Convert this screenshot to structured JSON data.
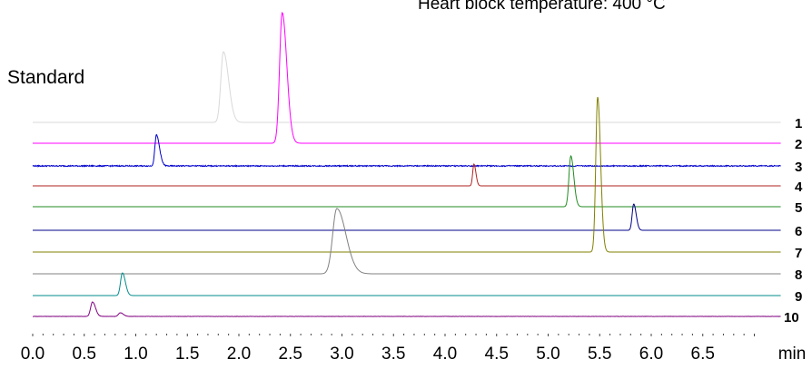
{
  "header": {
    "title": "Heart block temperature: 400 °C",
    "standard_label": "Standard"
  },
  "chart_data": {
    "type": "line",
    "title": "Heart block temperature: 400 °C",
    "xlabel": "min",
    "ylabel": "",
    "xlim": [
      0.0,
      7.0
    ],
    "xticks": [
      "0.0",
      "0.5",
      "1.0",
      "1.5",
      "2.0",
      "2.5",
      "3.0",
      "3.5",
      "4.0",
      "4.5",
      "5.0",
      "5.5",
      "6.0",
      "6.5"
    ],
    "x_unit_label": "min",
    "stacked_offset_traces": true,
    "grid": false,
    "legend": "right-side numeric labels",
    "series": [
      {
        "name": "1",
        "color": "#d9d9d9",
        "peaks": [
          {
            "rt": 1.85,
            "height": 1.0
          }
        ],
        "noise": 0.0
      },
      {
        "name": "2",
        "color": "#ff00ff",
        "peaks": [
          {
            "rt": 2.42,
            "height": 1.0
          }
        ],
        "noise": 0.0
      },
      {
        "name": "3",
        "color": "#0000cc",
        "peaks": [
          {
            "rt": 1.2,
            "height": 1.0
          }
        ],
        "noise": 0.6
      },
      {
        "name": "4",
        "color": "#b22222",
        "peaks": [
          {
            "rt": 4.28,
            "height": 1.0
          }
        ],
        "noise": 0.0
      },
      {
        "name": "5",
        "color": "#228b22",
        "peaks": [
          {
            "rt": 5.22,
            "height": 1.0
          }
        ],
        "noise": 0.0
      },
      {
        "name": "6",
        "color": "#00008b",
        "peaks": [
          {
            "rt": 5.83,
            "height": 1.0
          }
        ],
        "noise": 0.0
      },
      {
        "name": "7",
        "color": "#808000",
        "peaks": [
          {
            "rt": 5.48,
            "height": 1.0
          }
        ],
        "noise": 0.0
      },
      {
        "name": "8",
        "color": "#808080",
        "peaks": [
          {
            "rt": 2.95,
            "height": 1.0
          }
        ],
        "noise": 0.0
      },
      {
        "name": "9",
        "color": "#008b8b",
        "peaks": [
          {
            "rt": 0.87,
            "height": 1.0
          }
        ],
        "noise": 0.0
      },
      {
        "name": "10",
        "color": "#800080",
        "peaks": [
          {
            "rt": 0.58,
            "height": 1.0
          },
          {
            "rt": 0.85,
            "height": 0.15
          }
        ],
        "noise": 0.15
      }
    ]
  }
}
